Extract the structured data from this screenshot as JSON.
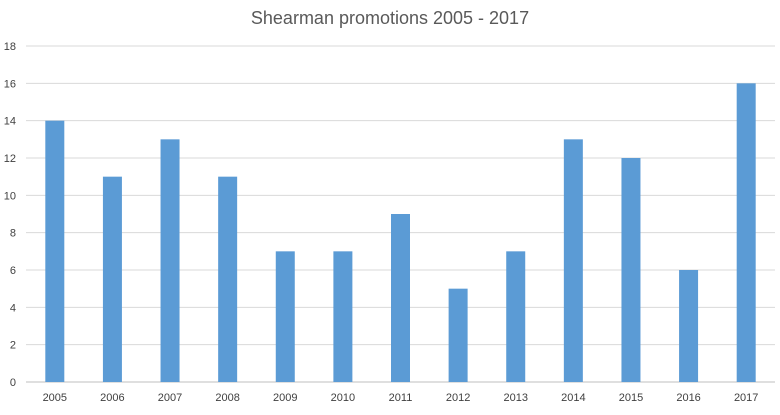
{
  "chart_data": {
    "type": "bar",
    "title": "Shearman promotions 2005 - 2017",
    "categories": [
      "2005",
      "2006",
      "2007",
      "2008",
      "2009",
      "2010",
      "2011",
      "2012",
      "2013",
      "2014",
      "2015",
      "2016",
      "2017"
    ],
    "values": [
      14,
      11,
      13,
      11,
      7,
      7,
      9,
      5,
      7,
      13,
      12,
      6,
      16
    ],
    "ylim": [
      0,
      18
    ],
    "yticks": [
      0,
      2,
      4,
      6,
      8,
      10,
      12,
      14,
      16,
      18
    ],
    "grid": true,
    "legend": "none",
    "bar_color": "#5b9bd5"
  }
}
